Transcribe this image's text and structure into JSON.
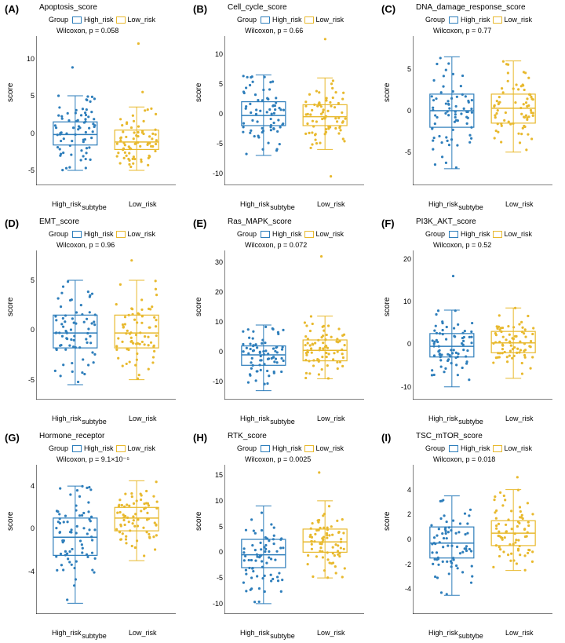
{
  "colors": {
    "high": "#2e7ebb",
    "low": "#e8b92e",
    "axis": "#000000",
    "bg": "#ffffff"
  },
  "global": {
    "ylab": "score",
    "xlab": "subtybe",
    "xcat1": "High_risk",
    "xcat2": "Low_risk",
    "legend_label": "Group",
    "legend_item1": "High_risk",
    "legend_item2": "Low_risk",
    "point_radius": 1.6,
    "box_halfwidth": 28,
    "whisker_cap": 10,
    "jitter_width": 26,
    "n_points_per_group": 72
  },
  "panels": [
    {
      "letter": "(A)",
      "title": "Apoptosis_score",
      "wilcox": "Wilcoxon, p = 0.058",
      "ylim": [
        -7,
        13
      ],
      "yticks": [
        -5,
        0,
        5,
        10
      ],
      "high": {
        "q1": -1.6,
        "med": -0.2,
        "q3": 1.5,
        "wlo": -5.0,
        "whi": 5.0,
        "spread": 2.5,
        "outliers": [
          8.8
        ]
      },
      "low": {
        "q1": -2.2,
        "med": -1.2,
        "q3": 0.4,
        "wlo": -5.0,
        "whi": 3.5,
        "spread": 2.0,
        "outliers": [
          12.0,
          5.5
        ]
      }
    },
    {
      "letter": "(B)",
      "title": "Cell_cycle_score",
      "wilcox": "Wilcoxon, p = 0.66",
      "ylim": [
        -12,
        13
      ],
      "yticks": [
        -10,
        -5,
        0,
        5,
        10
      ],
      "high": {
        "q1": -2.0,
        "med": -0.3,
        "q3": 2.0,
        "wlo": -7.0,
        "whi": 6.5,
        "spread": 3.0,
        "outliers": []
      },
      "low": {
        "q1": -2.0,
        "med": -0.5,
        "q3": 1.5,
        "wlo": -6.0,
        "whi": 6.0,
        "spread": 2.8,
        "outliers": [
          12.5,
          -10.5
        ]
      }
    },
    {
      "letter": "(C)",
      "title": "DNA_damage_response_score",
      "wilcox": "Wilcoxon, p = 0.77",
      "ylim": [
        -9,
        9
      ],
      "yticks": [
        -5,
        0,
        5
      ],
      "high": {
        "q1": -2.0,
        "med": 0.0,
        "q3": 2.0,
        "wlo": -7.0,
        "whi": 6.5,
        "spread": 2.8,
        "outliers": []
      },
      "low": {
        "q1": -1.5,
        "med": 0.3,
        "q3": 2.0,
        "wlo": -5.0,
        "whi": 6.0,
        "spread": 2.5,
        "outliers": []
      }
    },
    {
      "letter": "(D)",
      "title": "EMT_score",
      "wilcox": "Wilcoxon, p = 0.96",
      "ylim": [
        -7,
        8
      ],
      "yticks": [
        -5,
        0,
        5
      ],
      "high": {
        "q1": -1.8,
        "med": -0.3,
        "q3": 1.5,
        "wlo": -5.5,
        "whi": 5.0,
        "spread": 2.3,
        "outliers": []
      },
      "low": {
        "q1": -1.8,
        "med": -0.3,
        "q3": 1.5,
        "wlo": -5.0,
        "whi": 5.0,
        "spread": 2.2,
        "outliers": [
          7.0
        ]
      }
    },
    {
      "letter": "(E)",
      "title": "Ras_MAPK_score",
      "wilcox": "Wilcoxon, p = 0.072",
      "ylim": [
        -16,
        34
      ],
      "yticks": [
        -10,
        0,
        10,
        20,
        30
      ],
      "high": {
        "q1": -4.5,
        "med": -1.0,
        "q3": 2.0,
        "wlo": -13.0,
        "whi": 9.0,
        "spread": 5.0,
        "outliers": []
      },
      "low": {
        "q1": -3.0,
        "med": 0.5,
        "q3": 4.0,
        "wlo": -9.0,
        "whi": 12.0,
        "spread": 5.0,
        "outliers": [
          32.0
        ]
      }
    },
    {
      "letter": "(F)",
      "title": "PI3K_AKT_score",
      "wilcox": "Wilcoxon, p = 0.52",
      "ylim": [
        -13,
        22
      ],
      "yticks": [
        -10,
        0,
        10,
        20
      ],
      "high": {
        "q1": -3.0,
        "med": -0.5,
        "q3": 2.5,
        "wlo": -10.0,
        "whi": 8.0,
        "spread": 4.0,
        "outliers": [
          16.0
        ]
      },
      "low": {
        "q1": -2.0,
        "med": 0.3,
        "q3": 3.0,
        "wlo": -8.0,
        "whi": 8.5,
        "spread": 3.5,
        "outliers": []
      }
    },
    {
      "letter": "(G)",
      "title": "Hormone_receptor",
      "wilcox": "Wilcoxon, p = 9.1×10⁻⁵",
      "ylim": [
        -8,
        6
      ],
      "yticks": [
        -4,
        0,
        4
      ],
      "high": {
        "q1": -2.5,
        "med": -0.8,
        "q3": 1.0,
        "wlo": -7.0,
        "whi": 4.0,
        "spread": 2.5,
        "outliers": []
      },
      "low": {
        "q1": -0.2,
        "med": 1.0,
        "q3": 2.0,
        "wlo": -3.0,
        "whi": 4.5,
        "spread": 1.8,
        "outliers": []
      }
    },
    {
      "letter": "(H)",
      "title": "RTK_score",
      "wilcox": "Wilcoxon, p = 0.0025",
      "ylim": [
        -12,
        17
      ],
      "yticks": [
        -10,
        -5,
        0,
        5,
        10,
        15
      ],
      "high": {
        "q1": -3.0,
        "med": -0.5,
        "q3": 2.5,
        "wlo": -10.0,
        "whi": 9.0,
        "spread": 4.0,
        "outliers": []
      },
      "low": {
        "q1": 0.0,
        "med": 2.0,
        "q3": 4.5,
        "wlo": -5.0,
        "whi": 10.0,
        "spread": 3.5,
        "outliers": [
          15.5
        ]
      }
    },
    {
      "letter": "(I)",
      "title": "TSC_mTOR_score",
      "wilcox": "Wilcoxon, p = 0.018",
      "ylim": [
        -6,
        6
      ],
      "yticks": [
        -4,
        -2,
        0,
        2,
        4
      ],
      "high": {
        "q1": -1.5,
        "med": -0.3,
        "q3": 1.0,
        "wlo": -4.5,
        "whi": 3.5,
        "spread": 1.8,
        "outliers": []
      },
      "low": {
        "q1": -0.5,
        "med": 0.5,
        "q3": 1.5,
        "wlo": -2.5,
        "whi": 4.0,
        "spread": 1.5,
        "outliers": [
          5.0
        ]
      }
    }
  ]
}
